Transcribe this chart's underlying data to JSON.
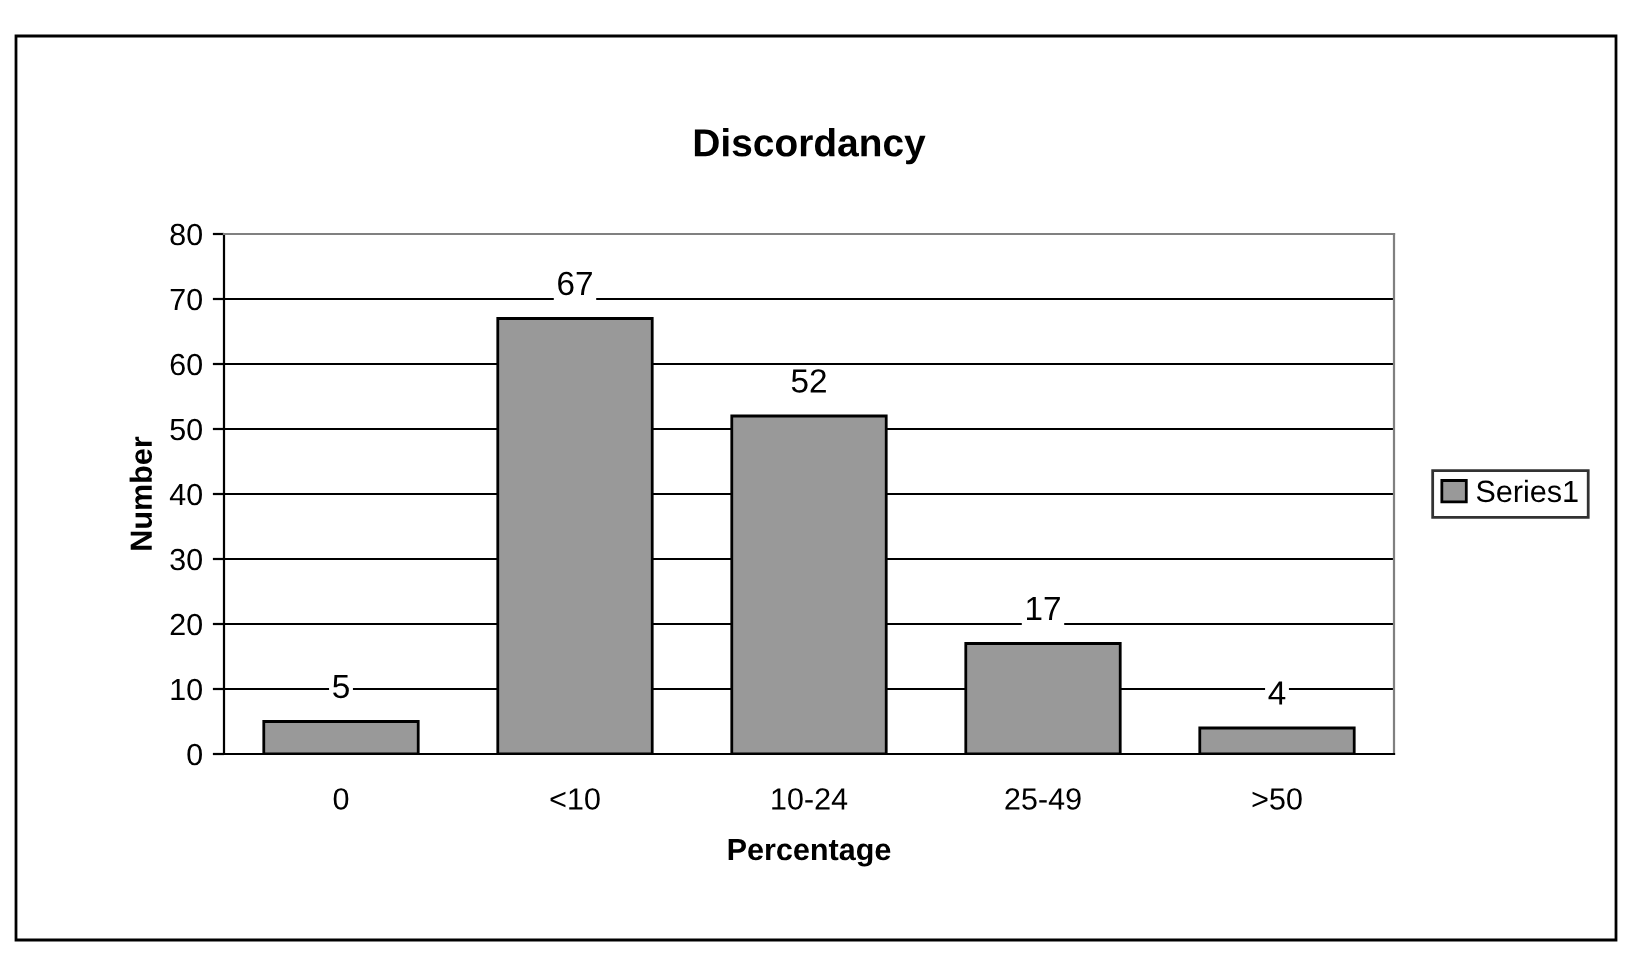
{
  "chart_data": {
    "type": "bar",
    "title": "Discordancy",
    "xlabel": "Percentage",
    "ylabel": "Number",
    "categories": [
      "0",
      "<10",
      "10-24",
      "25-49",
      ">50"
    ],
    "series": [
      {
        "name": "Series1",
        "color": "#999999",
        "values": [
          5,
          67,
          52,
          17,
          4
        ]
      }
    ],
    "ylim": [
      0,
      80
    ],
    "yticks": [
      0,
      10,
      20,
      30,
      40,
      50,
      60,
      70,
      80
    ],
    "grid": "y",
    "legend": "right",
    "data_labels": true
  }
}
